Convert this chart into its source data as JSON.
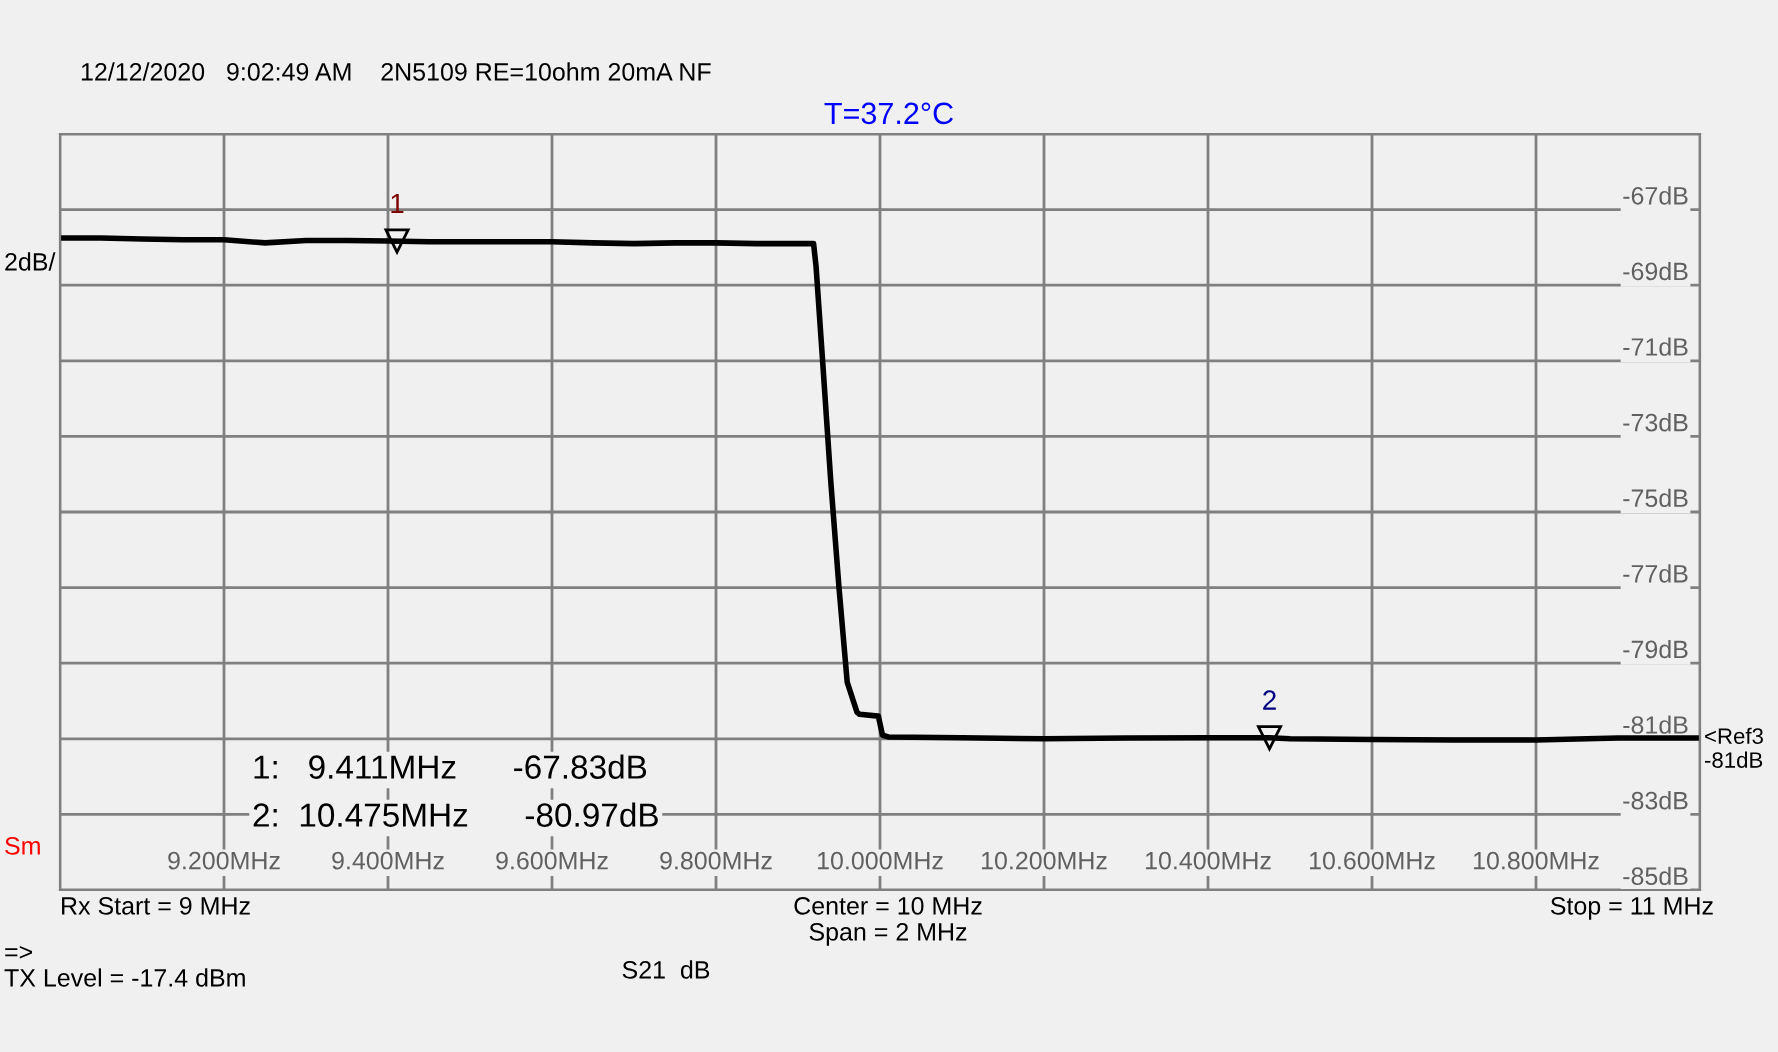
{
  "chart_data": {
    "type": "line",
    "title": "T=37.2°C",
    "subtitle": "12/12/2020   9:02:49 AM    2N5109 RE=10ohm 20mA NF",
    "series": [
      {
        "color": "#000000",
        "x": [
          9.0,
          9.05,
          9.1,
          9.15,
          9.2,
          9.25,
          9.3,
          9.35,
          9.4,
          9.45,
          9.5,
          9.55,
          9.6,
          9.65,
          9.7,
          9.75,
          9.8,
          9.85,
          9.9,
          9.919,
          9.922,
          9.93,
          9.94,
          9.95,
          9.96,
          9.972,
          9.975,
          9.998,
          10.003,
          10.01,
          10.1,
          10.2,
          10.3,
          10.4,
          10.475,
          10.5,
          10.6,
          10.7,
          10.8,
          10.9,
          11.0
        ],
        "values": [
          -67.75,
          -67.75,
          -67.78,
          -67.8,
          -67.8,
          -67.88,
          -67.82,
          -67.82,
          -67.83,
          -67.85,
          -67.85,
          -67.85,
          -67.85,
          -67.88,
          -67.9,
          -67.88,
          -67.88,
          -67.9,
          -67.9,
          -67.9,
          -68.5,
          -71,
          -74.2,
          -77,
          -79.5,
          -80.3,
          -80.35,
          -80.4,
          -80.9,
          -80.95,
          -80.97,
          -81.0,
          -80.98,
          -80.97,
          -80.97,
          -81.0,
          -81.02,
          -81.03,
          -81.03,
          -80.98,
          -80.98
        ]
      }
    ],
    "xlim": [
      9.0,
      11.0
    ],
    "xticks": [
      {
        "value": 9.0,
        "label": null
      },
      {
        "value": 9.2,
        "label": "9.200MHz"
      },
      {
        "value": 9.4,
        "label": "9.400MHz"
      },
      {
        "value": 9.6,
        "label": "9.600MHz"
      },
      {
        "value": 9.8,
        "label": "9.800MHz"
      },
      {
        "value": 10.0,
        "label": "10.000MHz"
      },
      {
        "value": 10.2,
        "label": "10.200MHz"
      },
      {
        "value": 10.4,
        "label": "10.400MHz"
      },
      {
        "value": 10.6,
        "label": "10.600MHz"
      },
      {
        "value": 10.8,
        "label": "10.800MHz"
      },
      {
        "value": 11.0,
        "label": null
      }
    ],
    "ylim": [
      -85,
      -65
    ],
    "yticks": [
      {
        "value": -85,
        "label": "-85dB"
      },
      {
        "value": -83,
        "label": "-83dB"
      },
      {
        "value": -81,
        "label": "-81dB"
      },
      {
        "value": -79,
        "label": "-79dB"
      },
      {
        "value": -77,
        "label": "-77dB"
      },
      {
        "value": -75,
        "label": "-75dB"
      },
      {
        "value": -73,
        "label": "-73dB"
      },
      {
        "value": -71,
        "label": "-71dB"
      },
      {
        "value": -69,
        "label": "-69dB"
      },
      {
        "value": -67,
        "label": "-67dB"
      },
      {
        "value": -65,
        "label": null
      }
    ],
    "grid": true,
    "marker": "none",
    "line_style": "solid",
    "legend": false,
    "annotations": [
      {
        "text": "1",
        "x": 9.411,
        "y": -67.83
      },
      {
        "text": "2",
        "x": 10.475,
        "y": -80.97
      },
      "1:   9.411MHz      -67.83dB",
      "2:  10.475MHz      -80.97dB",
      "2dB/",
      "Sm",
      "Rx Start = 9 MHz",
      "Center = 10 MHz",
      "Span = 2 MHz",
      "Stop = 11 MHz",
      "=>",
      "TX Level = -17.4 dBm",
      "S21  dB",
      "<Ref3\n-81dB"
    ]
  }
}
